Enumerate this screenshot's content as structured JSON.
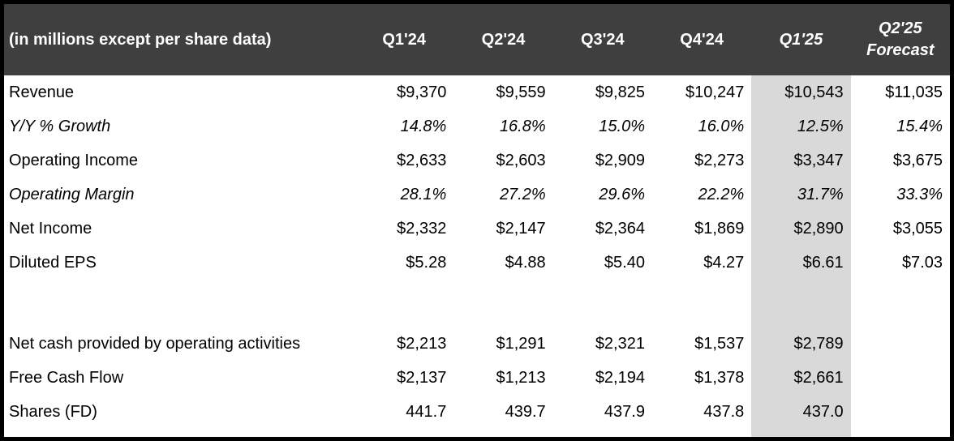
{
  "chart_data": {
    "type": "table",
    "corner_header": "(in millions except per share data)",
    "headers": [
      {
        "label": "Q1'24"
      },
      {
        "label": "Q2'24"
      },
      {
        "label": "Q3'24"
      },
      {
        "label": "Q4'24"
      },
      {
        "label": "Q1'25"
      },
      {
        "label": "Q2'25",
        "sublabel": "Forecast"
      }
    ],
    "highlight_column": "Q1'25",
    "rows": [
      {
        "label": "Revenue",
        "italic": false,
        "values": [
          "$9,370",
          "$9,559",
          "$9,825",
          "$10,247",
          "$10,543",
          "$11,035"
        ]
      },
      {
        "label": "Y/Y % Growth",
        "italic": true,
        "values": [
          "14.8%",
          "16.8%",
          "15.0%",
          "16.0%",
          "12.5%",
          "15.4%"
        ]
      },
      {
        "label": "Operating Income",
        "italic": false,
        "values": [
          "$2,633",
          "$2,603",
          "$2,909",
          "$2,273",
          "$3,347",
          "$3,675"
        ]
      },
      {
        "label": "Operating Margin",
        "italic": true,
        "values": [
          "28.1%",
          "27.2%",
          "29.6%",
          "22.2%",
          "31.7%",
          "33.3%"
        ]
      },
      {
        "label": "Net Income",
        "italic": false,
        "values": [
          "$2,332",
          "$2,147",
          "$2,364",
          "$1,869",
          "$2,890",
          "$3,055"
        ]
      },
      {
        "label": "Diluted EPS",
        "italic": false,
        "values": [
          "$5.28",
          "$4.88",
          "$5.40",
          "$4.27",
          "$6.61",
          "$7.03"
        ]
      },
      {
        "label": "",
        "italic": false,
        "values": [
          "",
          "",
          "",
          "",
          "",
          ""
        ]
      },
      {
        "label": "Net cash provided by operating activities",
        "italic": false,
        "values": [
          "$2,213",
          "$1,291",
          "$2,321",
          "$1,537",
          "$2,789",
          ""
        ]
      },
      {
        "label": "Free Cash Flow",
        "italic": false,
        "values": [
          "$2,137",
          "$1,213",
          "$2,194",
          "$1,378",
          "$2,661",
          ""
        ]
      },
      {
        "label": "Shares (FD)",
        "italic": false,
        "values": [
          "441.7",
          "439.7",
          "437.9",
          "437.8",
          "437.0",
          ""
        ]
      }
    ]
  },
  "colors": {
    "header_bg": "#3f3f3f",
    "header_text": "#ffffff",
    "highlight_bg": "#d9d9d9",
    "body_text": "#000000",
    "border": "#000000"
  }
}
